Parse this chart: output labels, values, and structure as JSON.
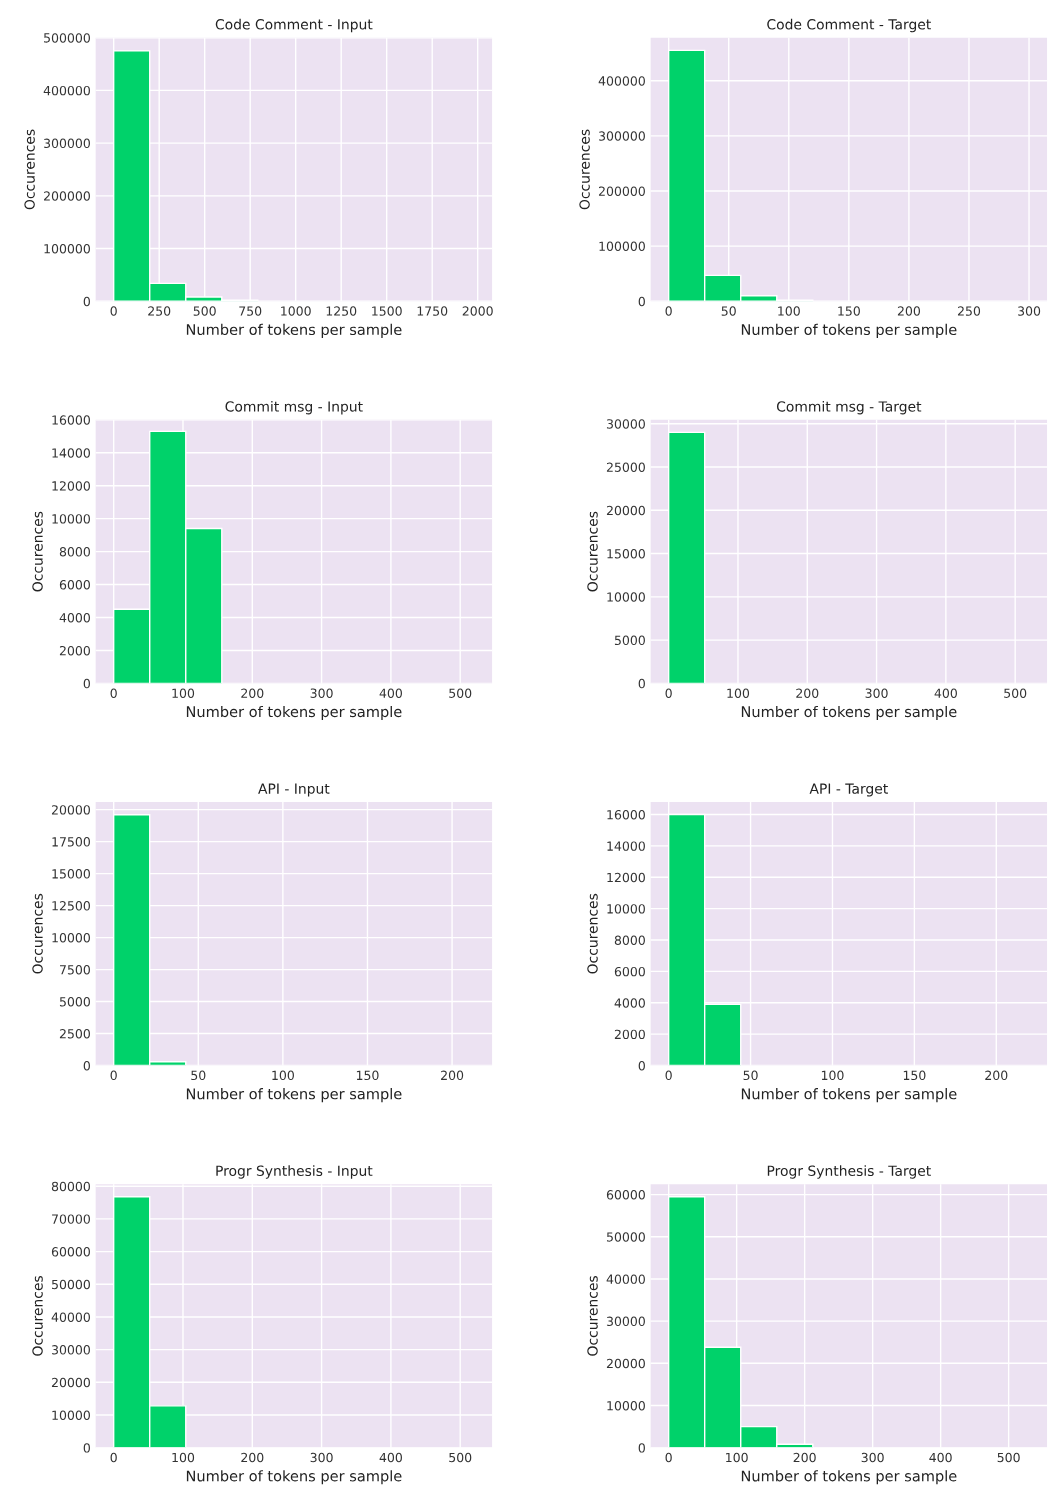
{
  "chart_data": [
    {
      "type": "histogram",
      "title": "Code Comment - Input",
      "xlabel": "Number of tokens per sample",
      "ylabel": "Occurences",
      "color": "#00d26a",
      "grid": true,
      "bins": [
        0,
        198,
        396,
        594,
        792,
        990,
        1188,
        1386,
        1584,
        1782,
        1980
      ],
      "values": [
        475000,
        34000,
        8000,
        2000,
        0,
        0,
        0,
        0,
        0,
        0
      ],
      "xlim": [
        -99,
        2079
      ],
      "ylim": [
        0,
        500000
      ],
      "xticks": [
        0,
        250,
        500,
        750,
        1000,
        1250,
        1500,
        1750,
        2000
      ],
      "yticks": [
        0,
        100000,
        200000,
        300000,
        400000,
        500000
      ]
    },
    {
      "type": "histogram",
      "title": "Code Comment - Target",
      "xlabel": "Number of tokens per sample",
      "ylabel": "Occurences",
      "color": "#00d26a",
      "grid": true,
      "bins": [
        0,
        30,
        60,
        90,
        120,
        150,
        180,
        210,
        240,
        270,
        300
      ],
      "values": [
        455000,
        47000,
        10000,
        2000,
        0,
        0,
        0,
        0,
        0,
        0
      ],
      "xlim": [
        -15,
        315
      ],
      "ylim": [
        0,
        478000
      ],
      "xticks": [
        0,
        50,
        100,
        150,
        200,
        250,
        300
      ],
      "yticks": [
        0,
        100000,
        200000,
        300000,
        400000
      ]
    },
    {
      "type": "histogram",
      "title": "Commit msg - Input",
      "xlabel": "Number of tokens per sample",
      "ylabel": "Occurences",
      "color": "#00d26a",
      "grid": true,
      "bins": [
        0,
        52,
        104,
        156,
        208,
        260,
        312,
        364,
        416,
        468,
        520
      ],
      "values": [
        4500,
        15300,
        9400,
        0,
        0,
        0,
        0,
        0,
        0,
        0
      ],
      "xlim": [
        -26,
        546
      ],
      "ylim": [
        0,
        16000
      ],
      "xticks": [
        0,
        100,
        200,
        300,
        400,
        500
      ],
      "yticks": [
        0,
        2000,
        4000,
        6000,
        8000,
        10000,
        12000,
        14000,
        16000
      ]
    },
    {
      "type": "histogram",
      "title": "Commit msg - Target",
      "xlabel": "Number of tokens per sample",
      "ylabel": "Occurences",
      "color": "#00d26a",
      "grid": true,
      "bins": [
        0,
        52,
        104,
        156,
        208,
        260,
        312,
        364,
        416,
        468,
        520
      ],
      "values": [
        29000,
        0,
        0,
        0,
        0,
        0,
        0,
        0,
        0,
        0
      ],
      "xlim": [
        -26,
        546
      ],
      "ylim": [
        0,
        30450
      ],
      "xticks": [
        0,
        100,
        200,
        300,
        400,
        500
      ],
      "yticks": [
        0,
        5000,
        10000,
        15000,
        20000,
        25000,
        30000
      ]
    },
    {
      "type": "histogram",
      "title": "API - Input",
      "xlabel": "Number of tokens per sample",
      "ylabel": "Occurences",
      "color": "#00d26a",
      "grid": true,
      "bins": [
        0,
        21.3,
        42.6,
        63.9,
        85.2,
        106.5,
        127.8,
        149.1,
        170.4,
        191.7,
        213
      ],
      "values": [
        19600,
        300,
        0,
        0,
        0,
        0,
        0,
        0,
        0,
        0
      ],
      "xlim": [
        -10.65,
        223.65
      ],
      "ylim": [
        0,
        20600
      ],
      "xticks": [
        0,
        50,
        100,
        150,
        200
      ],
      "yticks": [
        0,
        2500,
        5000,
        7500,
        10000,
        12500,
        15000,
        17500,
        20000
      ]
    },
    {
      "type": "histogram",
      "title": "API - Target",
      "xlabel": "Number of tokens per sample",
      "ylabel": "Occurences",
      "color": "#00d26a",
      "grid": true,
      "bins": [
        0,
        22,
        44,
        66,
        88,
        110,
        132,
        154,
        176,
        198,
        220
      ],
      "values": [
        16000,
        3900,
        0,
        0,
        0,
        0,
        0,
        0,
        0,
        0
      ],
      "xlim": [
        -11,
        231
      ],
      "ylim": [
        0,
        16800
      ],
      "xticks": [
        0,
        50,
        100,
        150,
        200
      ],
      "yticks": [
        0,
        2000,
        4000,
        6000,
        8000,
        10000,
        12000,
        14000,
        16000
      ]
    },
    {
      "type": "histogram",
      "title": "Progr Synthesis - Input",
      "xlabel": "Number of tokens per sample",
      "ylabel": "Occurences",
      "color": "#00d26a",
      "grid": true,
      "bins": [
        0,
        52,
        104,
        156,
        208,
        260,
        312,
        364,
        416,
        468,
        520
      ],
      "values": [
        76800,
        12800,
        0,
        0,
        0,
        0,
        0,
        0,
        0,
        0
      ],
      "xlim": [
        -26,
        546
      ],
      "ylim": [
        0,
        80640
      ],
      "xticks": [
        0,
        100,
        200,
        300,
        400,
        500
      ],
      "yticks": [
        0,
        10000,
        20000,
        30000,
        40000,
        50000,
        60000,
        70000,
        80000
      ]
    },
    {
      "type": "histogram",
      "title": "Progr Synthesis - Target",
      "xlabel": "Number of tokens per sample",
      "ylabel": "Occurences",
      "color": "#00d26a",
      "grid": true,
      "bins": [
        0,
        53,
        106,
        159,
        212,
        265,
        318,
        371,
        424,
        477,
        530
      ],
      "values": [
        59500,
        23800,
        5000,
        800,
        null,
        0,
        0,
        0,
        0,
        0
      ],
      "xlim": [
        -26.5,
        556.5
      ],
      "ylim": [
        0,
        62475
      ],
      "xticks": [
        0,
        100,
        200,
        300,
        400,
        500
      ],
      "yticks": [
        0,
        10000,
        20000,
        30000,
        40000,
        50000,
        60000
      ]
    }
  ]
}
